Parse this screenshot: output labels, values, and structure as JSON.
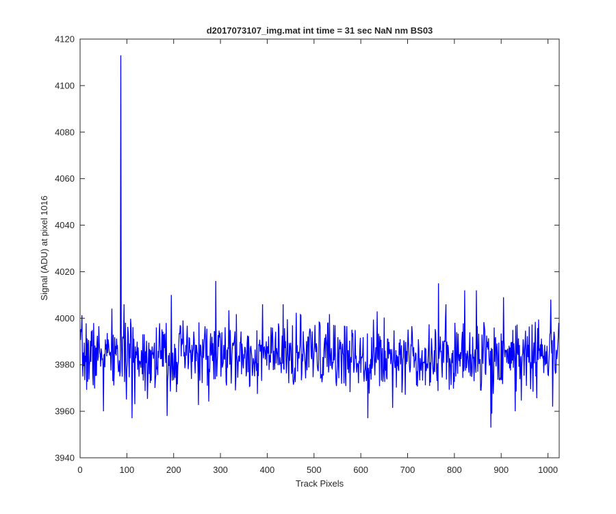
{
  "chart_data": {
    "type": "line",
    "title": "d2017073107_img.mat int time = 31 sec  NaN nm BS03",
    "xlabel": "Track Pixels",
    "ylabel": "Signal (ADU) at pixel 1016",
    "xlim": [
      0,
      1024
    ],
    "ylim": [
      3940,
      4120
    ],
    "xticks": [
      0,
      100,
      200,
      300,
      400,
      500,
      600,
      700,
      800,
      900,
      1000
    ],
    "yticks": [
      3940,
      3960,
      3980,
      4000,
      4020,
      4040,
      4060,
      4080,
      4100,
      4120
    ],
    "grid": false,
    "legend": "none",
    "series": [
      {
        "color": "#0000ff",
        "noise": {
          "mean": 3984,
          "std": 7.5,
          "n_points": 1024,
          "seed": 7
        },
        "peaks": [
          {
            "x": 87,
            "y": 4113
          },
          {
            "x": 85,
            "y": 3975
          },
          {
            "x": 88,
            "y": 3994
          },
          {
            "x": 50,
            "y": 3960
          },
          {
            "x": 111,
            "y": 3957
          },
          {
            "x": 186,
            "y": 3958
          },
          {
            "x": 290,
            "y": 4016
          },
          {
            "x": 195,
            "y": 4010
          },
          {
            "x": 615,
            "y": 3957
          },
          {
            "x": 766,
            "y": 4015
          },
          {
            "x": 878,
            "y": 3953
          },
          {
            "x": 880,
            "y": 3959
          },
          {
            "x": 822,
            "y": 4012
          },
          {
            "x": 847,
            "y": 4012
          },
          {
            "x": 905,
            "y": 4009
          },
          {
            "x": 1006,
            "y": 4008
          },
          {
            "x": 1010,
            "y": 3962
          },
          {
            "x": 930,
            "y": 3960
          },
          {
            "x": 1023,
            "y": 3998
          }
        ]
      }
    ]
  }
}
